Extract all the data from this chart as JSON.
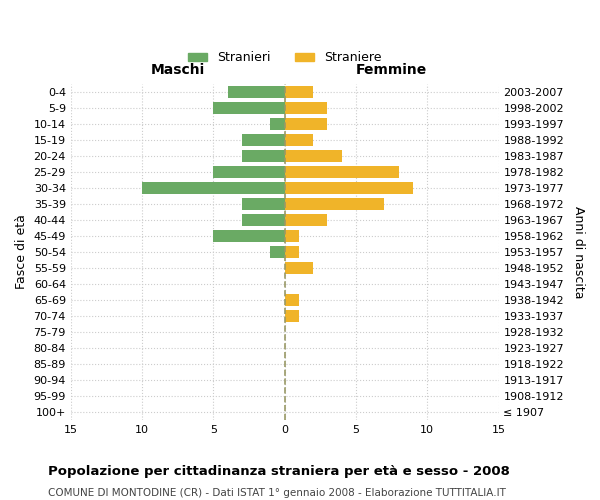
{
  "age_groups": [
    "100+",
    "95-99",
    "90-94",
    "85-89",
    "80-84",
    "75-79",
    "70-74",
    "65-69",
    "60-64",
    "55-59",
    "50-54",
    "45-49",
    "40-44",
    "35-39",
    "30-34",
    "25-29",
    "20-24",
    "15-19",
    "10-14",
    "5-9",
    "0-4"
  ],
  "birth_years": [
    "≤ 1907",
    "1908-1912",
    "1913-1917",
    "1918-1922",
    "1923-1927",
    "1928-1932",
    "1933-1937",
    "1938-1942",
    "1943-1947",
    "1948-1952",
    "1953-1957",
    "1958-1962",
    "1963-1967",
    "1968-1972",
    "1973-1977",
    "1978-1982",
    "1983-1987",
    "1988-1992",
    "1993-1997",
    "1998-2002",
    "2003-2007"
  ],
  "males": [
    0,
    0,
    0,
    0,
    0,
    0,
    0,
    0,
    0,
    0,
    1,
    5,
    3,
    3,
    10,
    5,
    3,
    3,
    1,
    5,
    4
  ],
  "females": [
    0,
    0,
    0,
    0,
    0,
    0,
    1,
    1,
    0,
    2,
    1,
    1,
    3,
    7,
    9,
    8,
    4,
    2,
    3,
    3,
    2
  ],
  "male_color": "#6aaa64",
  "female_color": "#f0b429",
  "background_color": "#ffffff",
  "grid_color": "#cccccc",
  "title": "Popolazione per cittadinanza straniera per età e sesso - 2008",
  "subtitle": "COMUNE DI MONTODINE (CR) - Dati ISTAT 1° gennaio 2008 - Elaborazione TUTTITALIA.IT",
  "xlabel_left": "Maschi",
  "xlabel_right": "Femmine",
  "ylabel_left": "Fasce di età",
  "ylabel_right": "Anni di nascita",
  "xlim": 15,
  "legend_male": "Stranieri",
  "legend_female": "Straniere",
  "dashed_line_color": "#999966"
}
